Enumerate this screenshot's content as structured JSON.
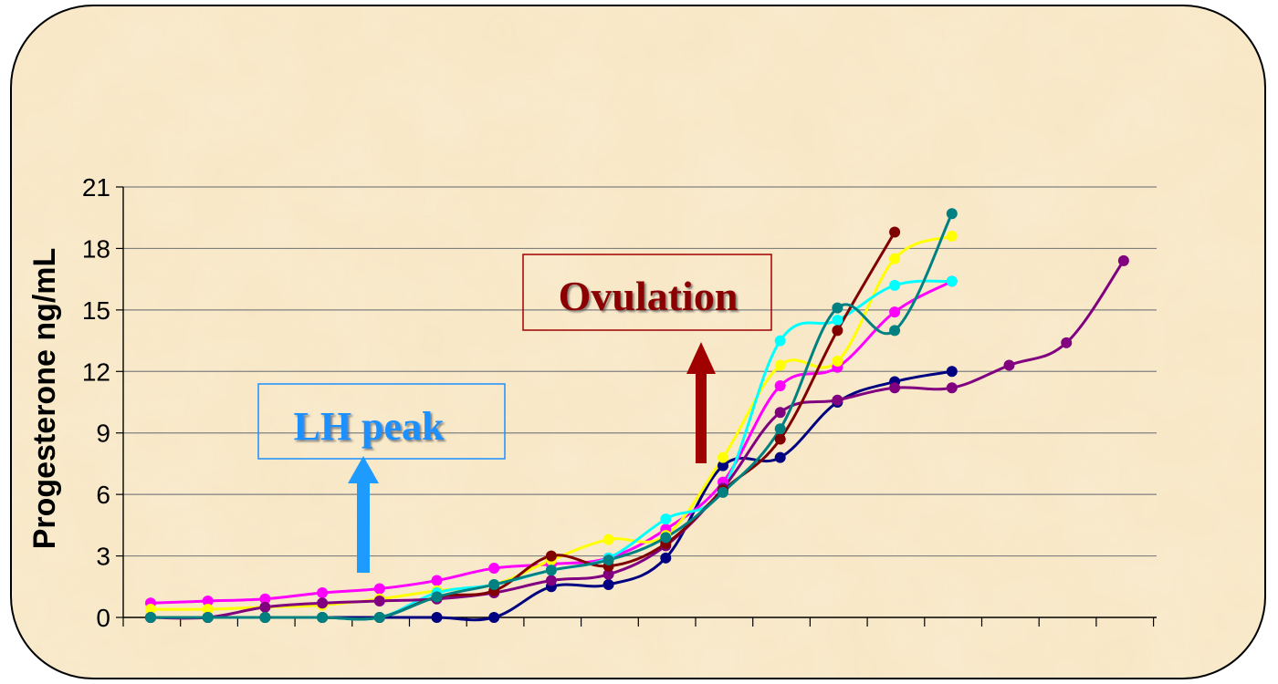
{
  "chart_data": {
    "type": "line",
    "ylabel": "Progesterone ng/mL",
    "xlabel": "",
    "ylim": [
      0,
      21
    ],
    "yticks": [
      0,
      3,
      6,
      9,
      12,
      15,
      18,
      21
    ],
    "x_category_count": 18,
    "grid": "horizontal",
    "legend": "none",
    "series": [
      {
        "color": "#000080",
        "x": [
          0,
          1,
          2,
          3,
          4,
          5,
          6,
          7,
          8,
          9,
          10,
          11,
          12,
          13,
          14
        ],
        "values": [
          0,
          0,
          0,
          0,
          0,
          0,
          0,
          1.5,
          1.6,
          2.9,
          7.4,
          7.8,
          10.5,
          11.5,
          12
        ]
      },
      {
        "color": "#FF00FF",
        "x": [
          0,
          1,
          2,
          3,
          4,
          5,
          6,
          7,
          8,
          9,
          10,
          11,
          12,
          13,
          14
        ],
        "values": [
          0.7,
          0.8,
          0.9,
          1.2,
          1.4,
          1.8,
          2.4,
          2.6,
          2.9,
          4.3,
          6.6,
          11.3,
          12.2,
          14.9,
          16.4
        ]
      },
      {
        "color": "#FFFF00",
        "x": [
          0,
          1,
          2,
          3,
          4,
          5,
          6,
          7,
          8,
          9,
          10,
          11,
          12,
          13,
          14
        ],
        "values": [
          0.4,
          0.4,
          0.5,
          0.6,
          0.9,
          1.3,
          1.6,
          2.8,
          3.8,
          4.0,
          7.8,
          12.3,
          12.5,
          17.5,
          18.6
        ]
      },
      {
        "color": "#00FFFF",
        "x": [
          0,
          1,
          2,
          3,
          4,
          5,
          6,
          7,
          8,
          9,
          10,
          11,
          12,
          13,
          14
        ],
        "values": [
          0,
          0,
          0,
          0,
          0,
          1.2,
          1.6,
          2.3,
          2.9,
          4.8,
          6.3,
          13.5,
          14.5,
          16.2,
          16.4
        ]
      },
      {
        "color": "#800080",
        "x": [
          0,
          1,
          2,
          3,
          4,
          5,
          6,
          7,
          8,
          9,
          10,
          11,
          12,
          13,
          14,
          15,
          16,
          17
        ],
        "values": [
          0,
          0,
          0.5,
          0.7,
          0.8,
          0.9,
          1.2,
          1.8,
          2.1,
          3.5,
          6.3,
          10,
          10.6,
          11.2,
          11.2,
          12.3,
          13.4,
          17.4
        ]
      },
      {
        "color": "#800000",
        "x": [
          0,
          1,
          2,
          3,
          4,
          5,
          6,
          7,
          8,
          9,
          10,
          11,
          12,
          13
        ],
        "values": [
          0,
          0,
          0,
          0,
          0,
          1,
          1.3,
          3.0,
          2.5,
          3.6,
          6.2,
          8.7,
          14,
          18.8
        ]
      },
      {
        "color": "#008080",
        "x": [
          0,
          1,
          2,
          3,
          4,
          5,
          6,
          7,
          8,
          9,
          10,
          11,
          12,
          13,
          14
        ],
        "values": [
          0,
          0,
          0,
          0,
          0,
          1.0,
          1.6,
          2.3,
          2.8,
          3.9,
          6.1,
          9.2,
          15.1,
          14,
          19.7
        ]
      }
    ]
  },
  "annotations": {
    "lh_peak": {
      "text": "LH peak",
      "color": "#1E90FF"
    },
    "ovulation": {
      "text": "Ovulation",
      "color": "#8B0000"
    }
  },
  "colors": {
    "background": "#F7E7C4",
    "grid": "#808080",
    "lh_arrow": "#1E9BFF",
    "ovulation_arrow": "#A00000"
  }
}
